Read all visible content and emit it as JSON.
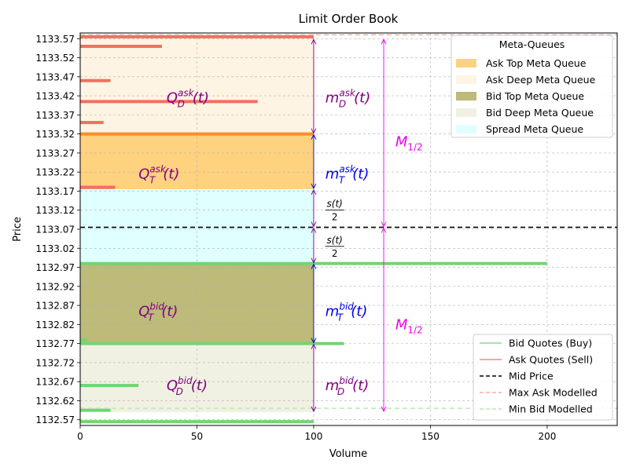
{
  "chart_data": {
    "type": "bar",
    "orientation": "horizontal",
    "title": "Limit Order Book",
    "xlabel": "Volume",
    "ylabel": "Price",
    "xlim": [
      0,
      230
    ],
    "ylim": [
      1132.555,
      1133.585
    ],
    "x_ticks": [
      0,
      50,
      100,
      150,
      200
    ],
    "y_ticks": [
      "1132.57",
      "1132.62",
      "1132.67",
      "1132.72",
      "1132.77",
      "1132.82",
      "1132.87",
      "1132.92",
      "1132.97",
      "1133.02",
      "1133.07",
      "1133.12",
      "1133.17",
      "1133.22",
      "1133.27",
      "1133.32",
      "1133.37",
      "1133.42",
      "1133.47",
      "1133.52",
      "1133.57"
    ],
    "grid": true,
    "mid_price": 1133.075,
    "max_ask_modelled": 1133.58,
    "min_bid_modelled": 1132.6,
    "colors": {
      "ask_quote": "#f07060",
      "ask_top_quote": "#ff8c2a",
      "bid_quote": "#72d572",
      "ask_top_queue": "#ffd27f",
      "ask_deep_queue": "#fdf4e3",
      "bid_top_queue": "#bdba7a",
      "bid_deep_queue": "#f1f1e3",
      "spread_queue": "#e0ffff",
      "arrow_purple": "#7a0099",
      "arrow_blue": "#0000cc",
      "arrow_magenta": "#ee00ee",
      "label_purple": "#800080",
      "label_blue": "#0000ee",
      "label_magenta": "#ee00ee"
    },
    "ask_quotes": [
      {
        "price": 1133.575,
        "volume": 100
      },
      {
        "price": 1133.55,
        "volume": 35
      },
      {
        "price": 1133.46,
        "volume": 13
      },
      {
        "price": 1133.405,
        "volume": 76
      },
      {
        "price": 1133.35,
        "volume": 10
      },
      {
        "price": 1133.32,
        "volume": 100,
        "top": true
      },
      {
        "price": 1133.18,
        "volume": 15
      }
    ],
    "bid_quotes": [
      {
        "price": 1132.98,
        "volume": 200
      },
      {
        "price": 1132.78,
        "volume": 3
      },
      {
        "price": 1132.77,
        "volume": 113
      },
      {
        "price": 1132.66,
        "volume": 25
      },
      {
        "price": 1132.595,
        "volume": 13
      },
      {
        "price": 1132.565,
        "volume": 100
      }
    ],
    "meta_queues": [
      {
        "name": "Ask Deep Meta Queue",
        "x": [
          0,
          100
        ],
        "y": [
          1133.32,
          1133.57
        ],
        "color_key": "ask_deep_queue"
      },
      {
        "name": "Ask Top Meta Queue",
        "x": [
          0,
          100
        ],
        "y": [
          1133.175,
          1133.32
        ],
        "color_key": "ask_top_queue"
      },
      {
        "name": "Spread Meta Queue",
        "x": [
          0,
          100
        ],
        "y": [
          1132.98,
          1133.175
        ],
        "color_key": "spread_queue"
      },
      {
        "name": "Bid Top Meta Queue",
        "x": [
          0,
          100
        ],
        "y": [
          1132.77,
          1132.98
        ],
        "color_key": "bid_top_queue"
      },
      {
        "name": "Bid Deep Meta Queue",
        "x": [
          0,
          100
        ],
        "y": [
          1132.59,
          1132.77
        ],
        "color_key": "bid_deep_queue"
      }
    ],
    "arrows": [
      {
        "x": 100,
        "y": [
          1133.32,
          1133.57
        ],
        "color_key": "arrow_purple"
      },
      {
        "x": 100,
        "y": [
          1133.175,
          1133.32
        ],
        "color_key": "arrow_blue"
      },
      {
        "x": 100,
        "y": [
          1133.075,
          1133.175
        ],
        "color_key": "arrow_purple"
      },
      {
        "x": 100,
        "y": [
          1132.98,
          1133.075
        ],
        "color_key": "arrow_purple"
      },
      {
        "x": 100,
        "y": [
          1132.77,
          1132.98
        ],
        "color_key": "arrow_blue"
      },
      {
        "x": 100,
        "y": [
          1132.59,
          1132.77
        ],
        "color_key": "arrow_purple"
      },
      {
        "x": 130,
        "y": [
          1133.075,
          1133.57
        ],
        "color_key": "arrow_magenta"
      },
      {
        "x": 130,
        "y": [
          1132.59,
          1133.075
        ],
        "color_key": "arrow_magenta"
      }
    ],
    "annotations": [
      {
        "main": "Q",
        "sub": "D",
        "sup": "ask",
        "arg": "(t)",
        "x": 37,
        "y": 1133.415,
        "color_key": "label_purple"
      },
      {
        "main": "Q",
        "sub": "T",
        "sup": "ask",
        "arg": "(t)",
        "x": 25,
        "y": 1133.215,
        "color_key": "label_purple"
      },
      {
        "main": "Q",
        "sub": "T",
        "sup": "bid",
        "arg": "(t)",
        "x": 25,
        "y": 1132.855,
        "color_key": "label_purple"
      },
      {
        "main": "Q",
        "sub": "D",
        "sup": "bid",
        "arg": "(t)",
        "x": 37,
        "y": 1132.66,
        "color_key": "label_purple"
      },
      {
        "main": "m",
        "sub": "D",
        "sup": "ask",
        "arg": "(t)",
        "x": 105,
        "y": 1133.415,
        "color_key": "label_purple"
      },
      {
        "main": "m",
        "sub": "T",
        "sup": "ask",
        "arg": "(t)",
        "x": 105,
        "y": 1133.215,
        "color_key": "label_blue"
      },
      {
        "main": "m",
        "sub": "T",
        "sup": "bid",
        "arg": "(t)",
        "x": 105,
        "y": 1132.855,
        "color_key": "label_blue"
      },
      {
        "main": "m",
        "sub": "D",
        "sup": "bid",
        "arg": "(t)",
        "x": 105,
        "y": 1132.66,
        "color_key": "label_purple"
      },
      {
        "main": "M",
        "sub": "1/2",
        "sup": "",
        "arg": "",
        "x": 135,
        "y": 1133.3,
        "color_key": "label_magenta"
      },
      {
        "main": "M",
        "sub": "1/2",
        "sup": "",
        "arg": "",
        "x": 135,
        "y": 1132.82,
        "color_key": "label_magenta"
      }
    ],
    "fractions": [
      {
        "num": "s(t)",
        "den": "2",
        "x": 109,
        "y": 1133.12
      },
      {
        "num": "s(t)",
        "den": "2",
        "x": 109,
        "y": 1133.025
      }
    ],
    "legend_top": {
      "placement": "top-right",
      "title": "Meta-Queues",
      "entries": [
        {
          "label": "Ask Top Meta Queue",
          "color_key": "ask_top_queue"
        },
        {
          "label": "Ask Deep Meta Queue",
          "color_key": "ask_deep_queue"
        },
        {
          "label": "Bid Top Meta Queue",
          "color_key": "bid_top_queue"
        },
        {
          "label": "Bid Deep Meta Queue",
          "color_key": "bid_deep_queue"
        },
        {
          "label": "Spread Meta Queue",
          "color_key": "spread_queue"
        }
      ]
    },
    "legend_bottom": {
      "placement": "bottom-right",
      "entries": [
        {
          "label": "Bid Quotes (Buy)",
          "style": "solid",
          "color": "#72d572"
        },
        {
          "label": "Ask Quotes (Sell)",
          "style": "solid",
          "color": "#f07060"
        },
        {
          "label": "Mid Price",
          "style": "dashed",
          "color": "#000000"
        },
        {
          "label": "Max Ask Modelled",
          "style": "dashed",
          "color": "#ffaaaa"
        },
        {
          "label": "Min Bid Modelled",
          "style": "dashed",
          "color": "#b8e8b8"
        }
      ]
    }
  }
}
